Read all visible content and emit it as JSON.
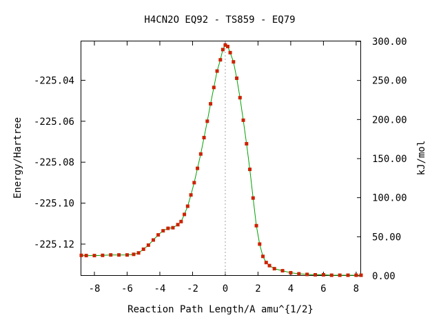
{
  "chart_data": {
    "type": "line",
    "title": "H4CN2O   EQ92 - TS859 - EQ79",
    "xlabel": "Reaction Path Length/A amu^{1/2}",
    "ylabel": "Energy/Hartree",
    "y2label": "kJ/mol",
    "xlim": [
      -8.8,
      8.3
    ],
    "ylim": [
      -225.1355,
      -225.021
    ],
    "y2lim": [
      0,
      300
    ],
    "x_ticks": [
      "-8",
      "-6",
      "-4",
      "-2",
      "0",
      "2",
      "4",
      "6",
      "8"
    ],
    "y_ticks": [
      "-225.04",
      "-225.06",
      "-225.08",
      "-225.10",
      "-225.12"
    ],
    "y2_ticks": [
      "300.00",
      "250.00",
      "200.00",
      "150.00",
      "100.00",
      "50.00",
      "0.00"
    ],
    "ts_x": 0.0,
    "line_color": "#00a000",
    "marker_color": "#cc2200",
    "series": [
      {
        "x": [
          -8.8,
          -8.5,
          -8.0,
          -7.5,
          -7.0,
          -6.5,
          -6.0,
          -5.6,
          -5.3,
          -5.0,
          -4.7,
          -4.4,
          -4.1,
          -3.8,
          -3.5,
          -3.2,
          -2.9,
          -2.7,
          -2.5,
          -2.3,
          -2.1,
          -1.9,
          -1.7,
          -1.5,
          -1.3,
          -1.1,
          -0.9,
          -0.7,
          -0.5,
          -0.3,
          -0.15,
          0.0,
          0.15,
          0.3,
          0.5,
          0.7,
          0.9,
          1.1,
          1.3,
          1.5,
          1.7,
          1.9,
          2.1,
          2.3,
          2.5,
          2.7,
          3.0,
          3.5,
          4.0,
          4.5,
          5.0,
          5.5,
          6.0,
          6.5,
          7.0,
          7.5,
          8.0,
          8.3
        ],
        "y": [
          -225.1255,
          -225.1256,
          -225.1256,
          -225.1255,
          -225.1253,
          -225.1253,
          -225.1253,
          -225.125,
          -225.1243,
          -225.1225,
          -225.1205,
          -225.118,
          -225.1155,
          -225.1135,
          -225.1123,
          -225.112,
          -225.1105,
          -225.109,
          -225.1055,
          -225.1015,
          -225.096,
          -225.09,
          -225.083,
          -225.076,
          -225.068,
          -225.06,
          -225.0515,
          -225.0435,
          -225.0355,
          -225.03,
          -225.025,
          -225.0228,
          -225.0235,
          -225.0265,
          -225.031,
          -225.039,
          -225.0485,
          -225.0595,
          -225.071,
          -225.0835,
          -225.0975,
          -225.111,
          -225.12,
          -225.126,
          -225.129,
          -225.1305,
          -225.132,
          -225.133,
          -225.134,
          -225.1345,
          -225.1348,
          -225.135,
          -225.135,
          -225.1352,
          -225.1352,
          -225.1352,
          -225.1352,
          -225.1352
        ]
      }
    ]
  }
}
